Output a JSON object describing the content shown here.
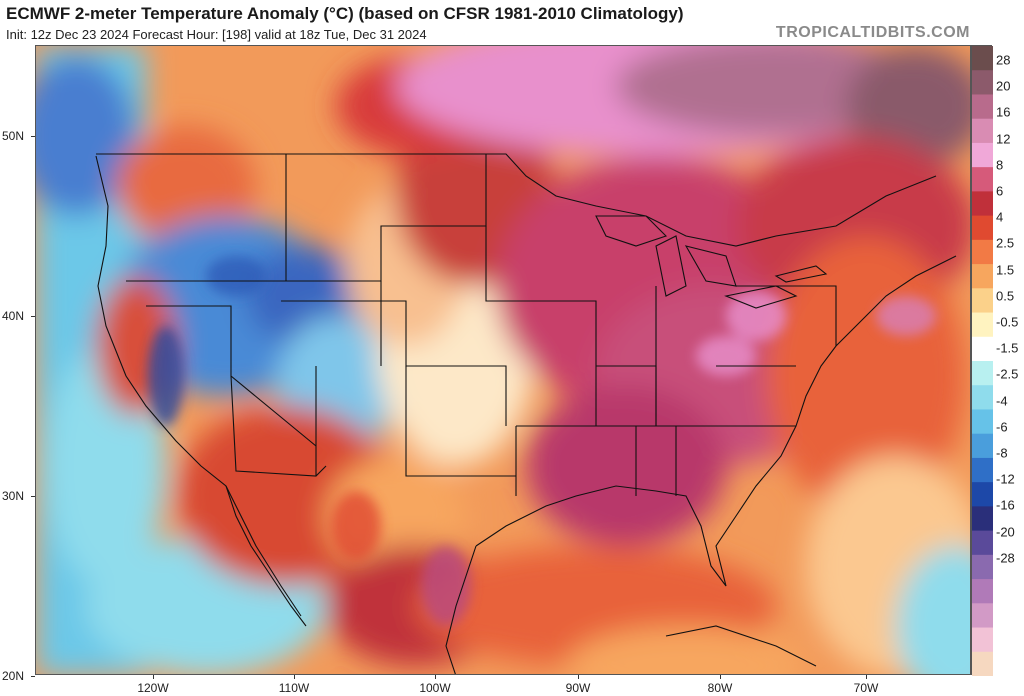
{
  "header": {
    "title": "ECMWF 2-meter Temperature Anomaly (°C) (based on CFSR 1981-2010 Climatology)",
    "subtitle": "Init: 12z Dec 23 2024   Forecast Hour: [198]   valid at 18z Tue, Dec 31 2024",
    "brand": "TROPICALTIDBITS.COM"
  },
  "axes": {
    "lat_labels": [
      "50N",
      "40N",
      "30N",
      "20N"
    ],
    "lon_labels": [
      "120W",
      "110W",
      "100W",
      "90W",
      "80W",
      "70W"
    ]
  },
  "colorbar": {
    "labels": [
      "28",
      "20",
      "16",
      "12",
      "8",
      "6",
      "4",
      "2.5",
      "1.5",
      "0.5",
      "-0.5",
      "-1.5",
      "-2.5",
      "-4",
      "-6",
      "-8",
      "-12",
      "-16",
      "-20",
      "-28"
    ],
    "colors": [
      "#6b4d4d",
      "#8c5a6b",
      "#b86b8c",
      "#d98cb3",
      "#f0a8d8",
      "#d65a7a",
      "#c0303a",
      "#e04a30",
      "#f27a45",
      "#f7a65e",
      "#fbd18a",
      "#fff3c0",
      "#ffffff",
      "#b8f0f0",
      "#8fdcec",
      "#66c2e8",
      "#4a9edc",
      "#2f6fc7",
      "#1d48a8",
      "#2a2f7a",
      "#5a4a9a",
      "#8a6aaf",
      "#b07ab8",
      "#d29ac6",
      "#f2c2d6",
      "#f6d8c0"
    ]
  },
  "map": {
    "description_colors": {
      "warm": "#c0303a",
      "cold": "#2f6fc7",
      "pink": "#e88ac4",
      "orange": "#f27a45",
      "coast": "#111111"
    }
  }
}
